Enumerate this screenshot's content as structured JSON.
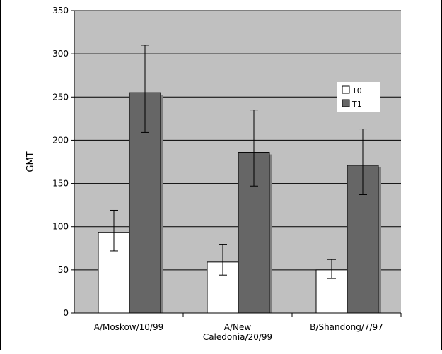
{
  "chart_data": {
    "type": "bar",
    "ylabel": "GMT",
    "ylim": [
      0,
      350
    ],
    "yticks": [
      0,
      50,
      100,
      150,
      200,
      250,
      300,
      350
    ],
    "grid": true,
    "legend_position": "right",
    "categories": [
      [
        "A/Moskow/10/99"
      ],
      [
        "A/New",
        "Caledonia/20/99"
      ],
      [
        "B/Shandong/7/97"
      ]
    ],
    "series": [
      {
        "name": "T0",
        "color": "#ffffff",
        "values": [
          93,
          59,
          50
        ],
        "error_low": [
          72,
          44,
          40
        ],
        "error_high": [
          119,
          79,
          62
        ]
      },
      {
        "name": "T1",
        "color": "#666666",
        "values": [
          255,
          186,
          171
        ],
        "error_low": [
          209,
          147,
          137
        ],
        "error_high": [
          310,
          235,
          213
        ]
      }
    ],
    "plot_background": "#c0c0c0"
  }
}
